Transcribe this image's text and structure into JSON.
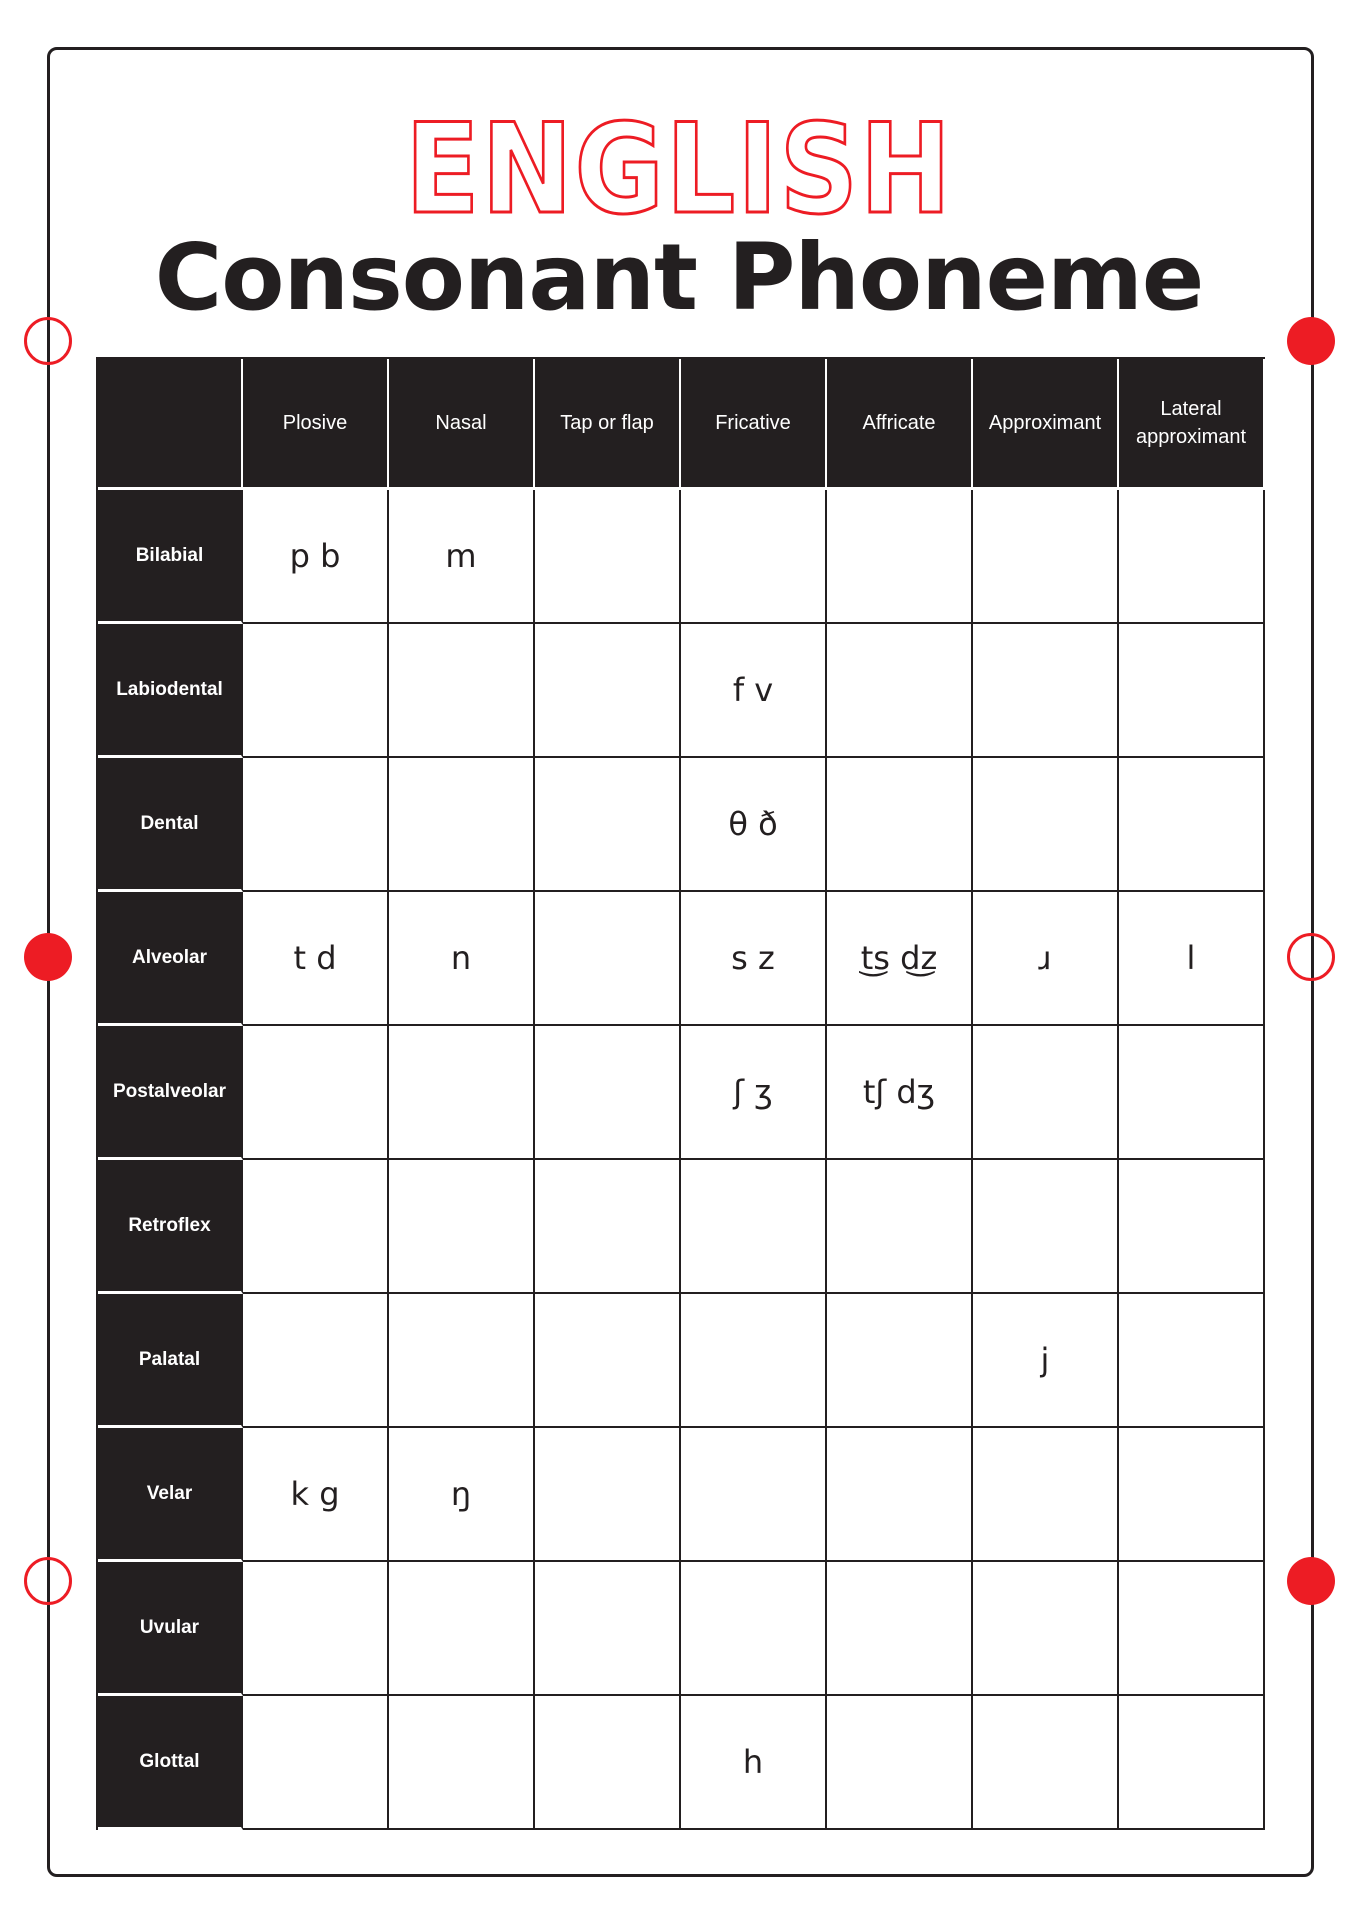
{
  "title": {
    "line1": "ENGLISH",
    "line2": "Consonant Phoneme"
  },
  "colors": {
    "accent": "#ed1c24",
    "dark": "#231f20"
  },
  "columns": [
    "Plosive",
    "Nasal",
    "Tap or flap",
    "Fricative",
    "Affricate",
    "Approximant",
    "Lateral approximant"
  ],
  "rows": [
    {
      "label": "Bilabial",
      "cells": [
        "p b",
        "m",
        "",
        "",
        "",
        "",
        ""
      ]
    },
    {
      "label": "Labiodental",
      "cells": [
        "",
        "",
        "",
        "f v",
        "",
        "",
        ""
      ]
    },
    {
      "label": "Dental",
      "cells": [
        "",
        "",
        "",
        "θ ð",
        "",
        "",
        ""
      ]
    },
    {
      "label": "Alveolar",
      "cells": [
        "t d",
        "n",
        "",
        "s z",
        "t͜s d͜z",
        "ɹ",
        "l"
      ]
    },
    {
      "label": "Postalveolar",
      "cells": [
        "",
        "",
        "",
        "ʃ ʒ",
        "tʃ dʒ",
        "",
        ""
      ]
    },
    {
      "label": "Retroflex",
      "cells": [
        "",
        "",
        "",
        "",
        "",
        "",
        ""
      ]
    },
    {
      "label": "Palatal",
      "cells": [
        "",
        "",
        "",
        "",
        "",
        "j",
        ""
      ]
    },
    {
      "label": "Velar",
      "cells": [
        "k g",
        "ŋ",
        "",
        "",
        "",
        "",
        ""
      ]
    },
    {
      "label": "Uvular",
      "cells": [
        "",
        "",
        "",
        "",
        "",
        "",
        ""
      ]
    },
    {
      "label": "Glottal",
      "cells": [
        "",
        "",
        "",
        "h",
        "",
        "",
        ""
      ]
    }
  ]
}
